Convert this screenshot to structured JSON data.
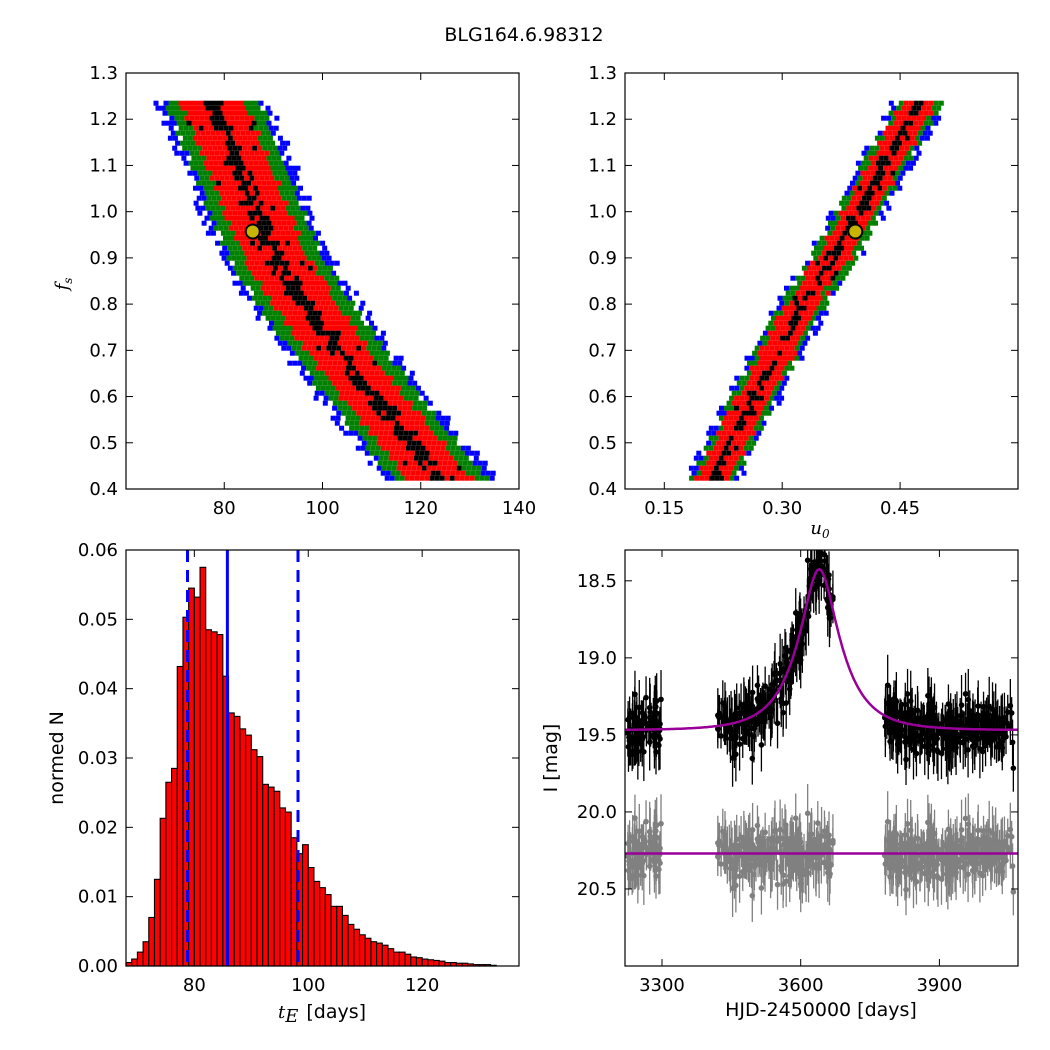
{
  "figure": {
    "title": "BLG164.6.98312"
  },
  "chart_data": [
    {
      "type": "heatmap",
      "panel": "top-left",
      "xlim": [
        60,
        140
      ],
      "ylim": [
        0.4,
        1.3
      ],
      "xticks": [
        "80",
        "100",
        "120",
        "140"
      ],
      "xtick_values": [
        80,
        100,
        120,
        140
      ],
      "yticks": [
        "0.4",
        "0.5",
        "0.6",
        "0.7",
        "0.8",
        "0.9",
        "1.0",
        "1.1",
        "1.2",
        "1.3"
      ],
      "ytick_values": [
        0.4,
        0.5,
        0.6,
        0.7,
        0.8,
        0.9,
        1.0,
        1.1,
        1.2,
        1.3
      ],
      "xlabel": "",
      "ylabel_main": "f",
      "ylabel_sub": "s",
      "ridge": {
        "y": [
          1.24,
          1.2,
          1.1,
          1.0,
          0.9,
          0.8,
          0.7,
          0.6,
          0.5,
          0.42
        ],
        "x": [
          77.5,
          79,
          83,
          86.5,
          90.5,
          96.5,
          103,
          110,
          118,
          124
        ]
      },
      "band_halfwidths": {
        "black": 1.6,
        "red": 6.5,
        "green": 9.5,
        "blue": 11.5
      },
      "colors": {
        "black": "#000000",
        "red": "#ff0000",
        "green": "#008000",
        "blue": "#0000ff"
      },
      "best_fit": {
        "x": 85.8,
        "y": 0.957,
        "color": "#c8b400"
      }
    },
    {
      "type": "heatmap",
      "panel": "top-right",
      "xlim": [
        0.1,
        0.6
      ],
      "ylim": [
        0.4,
        1.3
      ],
      "xticks": [
        "0.15",
        "0.30",
        "0.45"
      ],
      "xtick_values": [
        0.15,
        0.3,
        0.45
      ],
      "yticks": [
        "0.4",
        "0.5",
        "0.6",
        "0.7",
        "0.8",
        "0.9",
        "1.0",
        "1.1",
        "1.2",
        "1.3"
      ],
      "ytick_values": [
        0.4,
        0.5,
        0.6,
        0.7,
        0.8,
        0.9,
        1.0,
        1.1,
        1.2,
        1.3
      ],
      "xlabel_main": "u",
      "xlabel_sub": "0",
      "ylabel": "",
      "ridge": {
        "y": [
          0.42,
          0.5,
          0.6,
          0.7,
          0.8,
          0.9,
          1.0,
          1.1,
          1.2,
          1.24
        ],
        "x": [
          0.212,
          0.235,
          0.265,
          0.295,
          0.327,
          0.365,
          0.398,
          0.43,
          0.463,
          0.475
        ]
      },
      "band_halfwidths": {
        "black": 0.006,
        "red": 0.02,
        "green": 0.028,
        "blue": 0.034
      },
      "colors": {
        "black": "#000000",
        "red": "#ff0000",
        "green": "#008000",
        "blue": "#0000ff"
      },
      "best_fit": {
        "x": 0.393,
        "y": 0.957,
        "color": "#c8b400"
      }
    },
    {
      "type": "bar",
      "panel": "bottom-left",
      "xlim": [
        68,
        137
      ],
      "ylim": [
        0,
        0.06
      ],
      "xticks": [
        "80",
        "100",
        "120"
      ],
      "xtick_values": [
        80,
        100,
        120
      ],
      "yticks": [
        "0.00",
        "0.01",
        "0.02",
        "0.03",
        "0.04",
        "0.05",
        "0.06"
      ],
      "ytick_values": [
        0,
        0.01,
        0.02,
        0.03,
        0.04,
        0.05,
        0.06
      ],
      "xlabel_main": "t",
      "xlabel_sub": "E",
      "xlabel_rest": "[days]",
      "ylabel": "normed N",
      "bin_start": 68.0,
      "bin_width": 1.0,
      "values": [
        0.0005,
        0.001,
        0.002,
        0.0035,
        0.007,
        0.0125,
        0.0213,
        0.0265,
        0.0285,
        0.0432,
        0.0503,
        0.0545,
        0.0532,
        0.0575,
        0.0485,
        0.0482,
        0.0478,
        0.0418,
        0.0365,
        0.036,
        0.0342,
        0.0333,
        0.0312,
        0.0302,
        0.0262,
        0.0258,
        0.0252,
        0.0228,
        0.0222,
        0.0185,
        0.0162,
        0.0175,
        0.0142,
        0.0122,
        0.0113,
        0.0103,
        0.0086,
        0.0086,
        0.0073,
        0.006,
        0.0053,
        0.0045,
        0.004,
        0.0035,
        0.0033,
        0.003,
        0.0025,
        0.002,
        0.002,
        0.0017,
        0.0013,
        0.0012,
        0.001,
        0.0009,
        0.0008,
        0.0007,
        0.0005,
        0.0005,
        0.0004,
        0.0004,
        0.0003,
        0.0002,
        0.0002,
        0.0002,
        0.0001
      ],
      "bar_color": "#ff0000",
      "vlines": [
        {
          "x": 85.8,
          "style": "solid",
          "color": "#0000ff"
        },
        {
          "x": 78.8,
          "style": "dashed",
          "color": "#0000ff"
        },
        {
          "x": 98.2,
          "style": "dashed",
          "color": "#0000ff"
        }
      ]
    },
    {
      "type": "scatter",
      "panel": "bottom-right",
      "xlim": [
        3220,
        4070
      ],
      "ylim": [
        21.0,
        18.3
      ],
      "xticks": [
        "3300",
        "3600",
        "3900"
      ],
      "xtick_values": [
        3300,
        3600,
        3900
      ],
      "yticks": [
        "18.5",
        "19.0",
        "19.5",
        "20.0",
        "20.5"
      ],
      "ytick_values": [
        18.5,
        19.0,
        19.5,
        20.0,
        20.5
      ],
      "xlabel": "HJD-2450000 [days]",
      "ylabel": "I [mag]",
      "model": {
        "t0": 3640,
        "tE": 85.8,
        "u0": 0.393,
        "fs": 0.957,
        "base_mag": 19.47,
        "color": "#990099"
      },
      "residual_offset_mag": 20.27,
      "data_color": "#000000",
      "residual_color": "#808080",
      "seasons": [
        [
          3222,
          3300
        ],
        [
          3420,
          3670
        ],
        [
          3780,
          4060
        ]
      ]
    }
  ]
}
